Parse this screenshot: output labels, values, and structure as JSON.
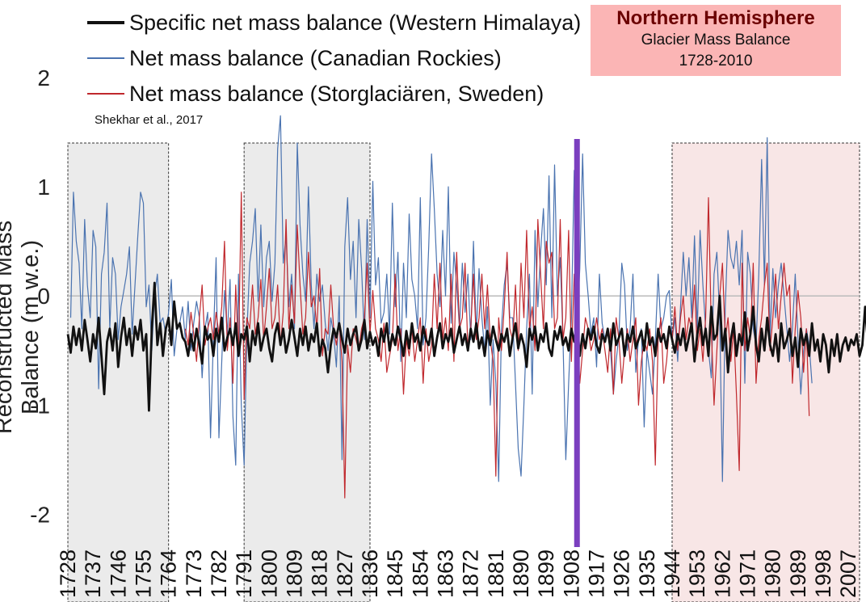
{
  "chart_data": {
    "type": "line",
    "title": "Northern Hemisphere",
    "subtitle": [
      "Glacier Mass Balance",
      "1728-2010"
    ],
    "source": "Shekhar et al., 2017",
    "ylabel": "Reconstructed Mass Balance (m w.e.)",
    "xlabel": "",
    "xlim": [
      1728,
      2011
    ],
    "ylim": [
      -2.1,
      1.6
    ],
    "yticks": [
      -2,
      -1,
      0,
      1,
      2
    ],
    "xticks": [
      1728,
      1737,
      1746,
      1755,
      1764,
      1773,
      1782,
      1791,
      1800,
      1809,
      1818,
      1827,
      1836,
      1845,
      1854,
      1863,
      1872,
      1881,
      1890,
      1899,
      1908,
      1917,
      1926,
      1935,
      1944,
      1953,
      1962,
      1971,
      1980,
      1989,
      1998,
      2007
    ],
    "legend_position": "top-left",
    "reference_line_year": 1910,
    "shaded_periods": [
      {
        "start": 1728,
        "end": 1764,
        "color": "#ebebeb"
      },
      {
        "start": 1791,
        "end": 1836,
        "color": "#ebebeb"
      },
      {
        "start": 1944,
        "end": 2011,
        "color": "#f8e6e6"
      }
    ],
    "series": [
      {
        "name": "Specific net mass balance (Western Himalaya)",
        "color": "#111111",
        "x_start": 1728,
        "values": [
          -0.35,
          -0.52,
          -0.28,
          -0.45,
          -0.3,
          -0.5,
          -0.22,
          -0.4,
          -0.6,
          -0.35,
          -0.48,
          -0.2,
          -0.55,
          -0.9,
          -0.42,
          -0.3,
          -0.5,
          -0.25,
          -0.65,
          -0.38,
          -0.2,
          -0.45,
          -0.3,
          -0.55,
          -0.28,
          -0.4,
          -0.22,
          -0.5,
          -0.35,
          -1.05,
          -0.3,
          0.12,
          -0.45,
          -0.25,
          -0.55,
          -0.3,
          -0.2,
          -0.45,
          -0.05,
          -0.3,
          -0.25,
          -0.38,
          -0.42,
          -0.55,
          -0.35,
          -0.5,
          -0.3,
          -0.45,
          -0.62,
          -0.28,
          -0.4,
          -0.35,
          -0.55,
          -0.3,
          -0.42,
          -0.2,
          -0.5,
          -0.38,
          -0.3,
          -0.45,
          -0.25,
          -0.55,
          -0.35,
          -0.4,
          -0.28,
          -0.6,
          -0.32,
          -0.45,
          -0.25,
          -0.5,
          -0.38,
          -0.3,
          -0.48,
          -0.6,
          -0.35,
          -0.25,
          -0.45,
          -0.3,
          -0.52,
          -0.4,
          -0.22,
          -0.38,
          -0.55,
          -0.3,
          -0.45,
          -0.28,
          -0.5,
          -0.35,
          -0.42,
          -0.25,
          -0.55,
          -0.4,
          -0.48,
          -0.7,
          -0.45,
          -0.3,
          -0.38,
          -0.25,
          -0.4,
          -0.52,
          -0.3,
          -0.45,
          -0.35,
          -0.28,
          -0.5,
          -0.4,
          -0.22,
          -0.48,
          -0.33,
          -0.45,
          -0.38,
          -0.55,
          -0.3,
          -0.42,
          -0.25,
          -0.5,
          -0.35,
          -0.45,
          -0.28,
          -0.4,
          -0.55,
          -0.32,
          -0.48,
          -0.25,
          -0.42,
          -0.35,
          -0.5,
          -0.28,
          -0.4,
          -0.45,
          -0.3,
          -0.55,
          -0.38,
          -0.25,
          -0.48,
          -0.35,
          -0.42,
          -0.3,
          -0.52,
          -0.4,
          -0.28,
          -0.45,
          -0.35,
          -0.5,
          -0.3,
          -0.42,
          -0.25,
          -0.48,
          -0.38,
          -0.55,
          -0.32,
          -0.45,
          -0.28,
          -0.4,
          -0.5,
          -0.35,
          -0.42,
          -0.3,
          -0.55,
          -0.38,
          -0.25,
          -0.48,
          -0.35,
          -0.45,
          -0.65,
          -0.3,
          -0.4,
          -0.28,
          -0.5,
          -0.35,
          -0.42,
          -0.25,
          -0.48,
          -0.55,
          -0.32,
          -0.4,
          -0.28,
          -0.45,
          -0.38,
          -0.5,
          -0.3,
          -0.42,
          -0.25,
          -0.55,
          -0.35,
          -0.48,
          -0.3,
          -0.4,
          -0.28,
          -0.45,
          -0.52,
          -0.35,
          -0.42,
          -0.3,
          -0.5,
          -0.25,
          -0.45,
          -0.38,
          -0.3,
          -0.55,
          -0.35,
          -0.42,
          -0.28,
          -0.48,
          -0.4,
          -0.32,
          -0.5,
          -0.25,
          -0.45,
          -0.38,
          -0.55,
          -0.3,
          -0.42,
          -0.35,
          -0.48,
          -0.28,
          -0.4,
          -0.52,
          -0.35,
          -0.45,
          -0.3,
          -0.5,
          -0.38,
          -0.25,
          -0.6,
          -0.35,
          -0.2,
          -0.45,
          -0.3,
          -0.55,
          -0.1,
          -0.4,
          -0.35,
          0.0,
          -0.5,
          -0.3,
          -0.7,
          -0.4,
          -0.25,
          -0.55,
          -0.35,
          -0.45,
          -0.15,
          -0.5,
          -0.35,
          -0.1,
          -0.45,
          -0.6,
          -0.3,
          -0.5,
          -0.2,
          -0.45,
          -0.55,
          -0.35,
          -0.6,
          -0.25,
          -0.48,
          -0.4,
          -0.3,
          -0.55,
          -0.38,
          -0.65,
          -0.3,
          -0.45,
          -0.35,
          -0.55,
          -0.25,
          -0.5,
          -0.4,
          -0.6,
          -0.35,
          -0.45,
          -0.7,
          -0.4,
          -0.55,
          -0.35,
          -0.6,
          -0.45,
          -0.38,
          -0.5,
          -0.4,
          -0.45,
          -0.35,
          -0.55,
          -0.45,
          -0.1,
          -0.45
        ]
      },
      {
        "name": "Net mass balance (Canadian Rockies)",
        "color": "#4a73b0",
        "x_start": 1729,
        "values": [
          -0.2,
          0.95,
          0.5,
          0.3,
          -0.3,
          0.7,
          0.1,
          -0.2,
          0.6,
          0.45,
          -0.85,
          0.2,
          0.4,
          0.85,
          -0.3,
          0.35,
          0.2,
          -0.4,
          -0.1,
          0.05,
          0.2,
          0.45,
          -0.35,
          0.1,
          0.55,
          0.95,
          0.85,
          -0.1,
          0.1,
          -0.5,
          0.0,
          0.2,
          -0.25,
          -0.2,
          -0.35,
          -0.15,
          0.15,
          -0.55,
          -0.3,
          -0.25,
          -0.1,
          -0.4,
          -0.05,
          -0.5,
          -0.25,
          -0.05,
          -0.2,
          -0.75,
          -0.3,
          -0.15,
          -1.3,
          -0.4,
          0.35,
          -1.3,
          -0.6,
          0.05,
          -0.35,
          0.15,
          -1.1,
          -1.55,
          0.2,
          -1.0,
          -1.55,
          -0.35,
          0.3,
          0.5,
          0.8,
          -0.05,
          0.65,
          -0.1,
          0.35,
          0.5,
          -0.05,
          0.3,
          1.35,
          1.65,
          0.3,
          0.55,
          -0.1,
          0.2,
          -0.3,
          1.4,
          0.65,
          0.2,
          -0.05,
          1.0,
          0.1,
          -0.3,
          0.2,
          -0.05,
          0.1,
          -0.25,
          -0.5,
          -0.2,
          -0.35,
          -0.65,
          0.0,
          -1.5,
          0.45,
          0.9,
          0.15,
          0.5,
          -0.2,
          0.7,
          0.25,
          -0.4,
          0.7,
          -0.2,
          1.05,
          0.1,
          0.35,
          -0.25,
          -0.15,
          0.2,
          -0.35,
          0.85,
          -0.1,
          0.4,
          -0.6,
          0.3,
          -0.2,
          0.75,
          0.15,
          0.0,
          -0.3,
          0.9,
          -0.45,
          -0.2,
          0.45,
          1.3,
          0.8,
          0.2,
          -0.1,
          0.6,
          0.0,
          1.0,
          -0.25,
          0.4,
          0.1,
          -0.3,
          0.3,
          -0.15,
          0.2,
          -0.4,
          0.5,
          -0.35,
          0.25,
          -0.2,
          -0.5,
          -0.1,
          -1.0,
          -0.4,
          -0.8,
          -1.7,
          -0.3,
          0.1,
          0.3,
          -0.2,
          -0.2,
          -0.8,
          -1.4,
          -1.65,
          -1.0,
          -0.3,
          0.2,
          -0.9,
          0.6,
          -0.1,
          0.4,
          0.8,
          0.1,
          1.1,
          -0.2,
          1.2,
          0.0,
          0.35,
          -0.4,
          -1.5,
          -0.8,
          -0.2,
          1.15,
          -0.3,
          0.25,
          1.3,
          0.3,
          0.0,
          -0.35,
          -0.2,
          -0.65,
          0.2,
          -0.25,
          -0.4,
          -0.3,
          -0.5,
          -0.9,
          -0.6,
          -0.35,
          0.3,
          0.1,
          -0.5,
          -0.3,
          0.2,
          -0.7,
          -0.4,
          -0.3,
          -1.2,
          -0.5,
          -0.7,
          -0.9,
          -0.4,
          0.2,
          -0.3,
          -0.2,
          0.0,
          0.05,
          -0.4,
          -0.2,
          -0.6,
          -0.1,
          0.4,
          0.0,
          0.35,
          -0.2,
          0.55,
          -0.3,
          0.6,
          0.1,
          -0.3,
          -0.5,
          -0.75,
          0.2,
          0.4,
          -0.2,
          -1.7,
          -0.1,
          0.6,
          0.35,
          0.25,
          0.5,
          0.1,
          0.6,
          -0.8,
          0.4,
          0.2,
          -0.3,
          -0.45,
          0.2,
          1.25,
          0.1,
          1.45,
          -0.4,
          0.25,
          -0.2,
          0.1,
          0.3,
          0.0,
          -0.3,
          -0.6,
          -0.3,
          0.2,
          -0.4,
          -0.9,
          -0.5,
          -0.3,
          -0.45,
          -0.8
        ]
      },
      {
        "name": "Net mass balance (Storglaciären, Sweden)",
        "color": "#c0282d",
        "x_start": 1770,
        "values": [
          -0.3,
          -0.45,
          -0.15,
          -0.35,
          -0.6,
          -0.2,
          0.1,
          -0.45,
          -0.3,
          -0.2,
          -0.4,
          -0.15,
          -0.35,
          -0.1,
          0.5,
          -0.5,
          -0.2,
          -0.8,
          0.1,
          -0.55,
          0.95,
          -0.95,
          -0.2,
          -0.3,
          0.1,
          -0.35,
          -0.2,
          0.15,
          -0.4,
          -0.1,
          0.25,
          -0.3,
          -0.2,
          0.1,
          -0.45,
          -0.15,
          0.7,
          -0.3,
          0.1,
          -0.25,
          0.65,
          0.1,
          -0.35,
          -0.2,
          0.4,
          -0.1,
          0.0,
          -0.3,
          0.25,
          -0.55,
          -0.3,
          -0.35,
          0.1,
          -0.3,
          -0.45,
          -0.25,
          -0.6,
          -1.85,
          -0.45,
          -0.7,
          -0.3,
          -0.4,
          -0.5,
          -0.3,
          -0.2,
          0.3,
          -0.35,
          0.05,
          -0.3,
          -0.4,
          -0.6,
          -0.25,
          -0.7,
          -0.55,
          -0.4,
          0.2,
          -0.5,
          -0.3,
          -0.9,
          -0.4,
          -0.55,
          -0.3,
          -0.6,
          -0.4,
          -0.2,
          -0.8,
          -0.3,
          -0.6,
          -0.45,
          0.2,
          -0.3,
          0.3,
          -0.4,
          -0.2,
          -0.5,
          0.2,
          -0.6,
          0.4,
          -0.3,
          -0.2,
          0.3,
          -0.5,
          -0.3,
          0.2,
          -0.4,
          -0.2,
          0.2,
          -0.3,
          0.1,
          -0.4,
          -0.6,
          -1.65,
          -0.2,
          -0.5,
          -0.1,
          0.4,
          -0.3,
          -0.4,
          0.1,
          -0.5,
          0.3,
          -0.2,
          0.6,
          -0.3,
          -0.1,
          -0.5,
          0.7,
          0.2,
          -0.3,
          0.5,
          0.3,
          0.4,
          -0.3,
          -0.2,
          0.7,
          -0.4,
          -0.2,
          0.6,
          -0.6,
          0.2,
          -0.3,
          -0.8,
          -0.5,
          -0.2,
          -0.3,
          -0.5,
          -0.4,
          -0.2,
          -0.4,
          -0.3,
          -0.5,
          -0.7,
          -0.3,
          -0.9,
          -0.2,
          -0.4,
          -0.8,
          -0.5,
          -0.3,
          -0.6,
          -0.4,
          -0.2,
          -1.0,
          -0.6,
          -0.4,
          -0.5,
          -0.3,
          -0.6,
          -1.55,
          -0.4,
          -0.2,
          -0.8,
          -0.6,
          -0.3,
          -0.4,
          -0.1,
          -0.5,
          -0.2,
          0.0,
          -0.4,
          -0.2,
          -0.3,
          0.1,
          -0.5,
          -0.3,
          -0.6,
          -0.2,
          0.9,
          -0.3,
          -1.0,
          -0.5,
          0.0,
          0.3,
          -0.4,
          -0.2,
          -0.6,
          -0.3,
          -0.9,
          -1.6,
          0.3,
          -0.5,
          -0.2,
          -0.4,
          0.3,
          -0.8,
          -0.4,
          -0.2,
          0.1,
          0.3,
          -0.5,
          -0.2,
          0.2,
          -0.3,
          0.0,
          0.3,
          0.0,
          0.1,
          -0.8,
          -0.3,
          0.05,
          -0.2,
          -0.7,
          -0.3,
          -1.1
        ]
      }
    ]
  }
}
